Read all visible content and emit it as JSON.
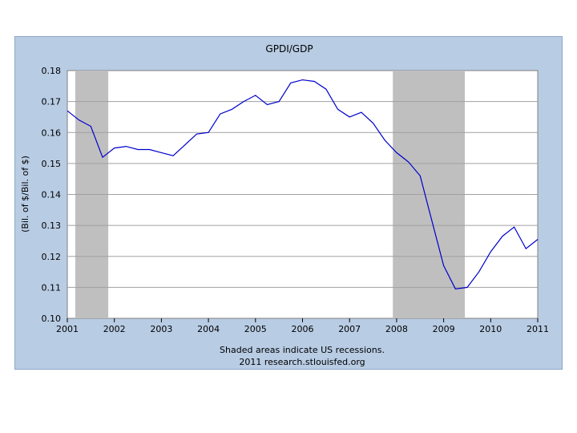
{
  "chart_data": {
    "type": "line",
    "title": "GPDI/GDP",
    "ylabel": "(Bil. of $/Bil. of $)",
    "xlabel": "",
    "xlim": [
      2001,
      2011
    ],
    "ylim": [
      0.1,
      0.18
    ],
    "x_ticks": [
      "2001",
      "2002",
      "2003",
      "2004",
      "2005",
      "2006",
      "2007",
      "2008",
      "2009",
      "2010",
      "2011"
    ],
    "y_ticks": [
      "0.10",
      "0.11",
      "0.12",
      "0.13",
      "0.14",
      "0.15",
      "0.16",
      "0.17",
      "0.18"
    ],
    "grid": true,
    "recessions": [
      {
        "start": 2001.17,
        "end": 2001.87
      },
      {
        "start": 2007.92,
        "end": 2009.45
      }
    ],
    "series": [
      {
        "color": "#0000cc",
        "x": [
          2001.0,
          2001.25,
          2001.5,
          2001.75,
          2002.0,
          2002.25,
          2002.5,
          2002.75,
          2003.0,
          2003.25,
          2003.5,
          2003.75,
          2004.0,
          2004.25,
          2004.5,
          2004.75,
          2005.0,
          2005.25,
          2005.5,
          2005.75,
          2006.0,
          2006.25,
          2006.5,
          2006.75,
          2007.0,
          2007.25,
          2007.5,
          2007.75,
          2008.0,
          2008.25,
          2008.5,
          2008.75,
          2009.0,
          2009.25,
          2009.5,
          2009.75,
          2010.0,
          2010.25,
          2010.5,
          2010.75,
          2011.0
        ],
        "y": [
          0.167,
          0.164,
          0.162,
          0.152,
          0.155,
          0.1555,
          0.1545,
          0.1545,
          0.1535,
          0.1525,
          0.156,
          0.1595,
          0.16,
          0.166,
          0.1675,
          0.17,
          0.172,
          0.169,
          0.17,
          0.176,
          0.177,
          0.1765,
          0.174,
          0.1675,
          0.165,
          0.1665,
          0.163,
          0.1575,
          0.1535,
          0.1505,
          0.146,
          0.1315,
          0.117,
          0.1095,
          0.11,
          0.115,
          0.1215,
          0.1265,
          0.1295,
          0.1225,
          0.1255
        ]
      }
    ]
  },
  "notes": {
    "line1": "Shaded areas indicate US recessions.",
    "line2": "2011 research.stlouisfed.org"
  },
  "colors": {
    "frame_bg": "#b8cce4",
    "plot_bg": "#ffffff",
    "recession": "#bfbfbf",
    "grid": "#a0a0a0",
    "line": "#0000cc"
  }
}
